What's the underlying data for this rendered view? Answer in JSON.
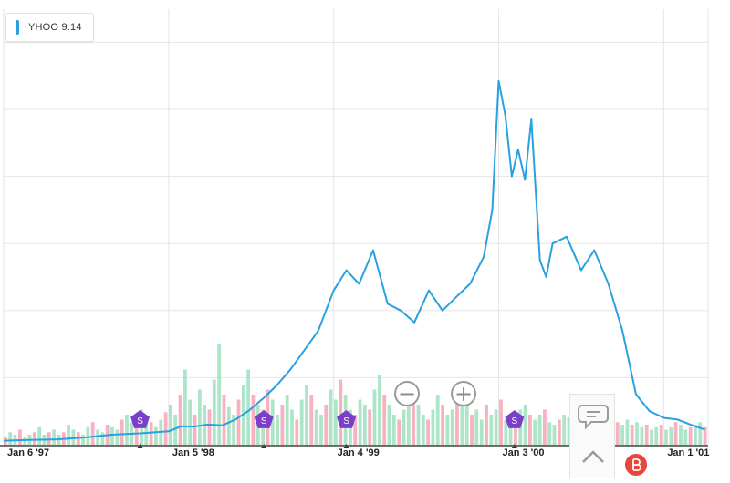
{
  "legend": {
    "label": "YHOO 9.14",
    "color": "#2aa0e0"
  },
  "colors": {
    "line": "#2aa0e0",
    "volume_up": "#9fe0bf",
    "volume_down": "#f5a5b5",
    "event_marker": "#7a3fc8",
    "grid": "#e6e6e6"
  },
  "controls": {
    "zoom_out": "−",
    "zoom_in": "+",
    "comment_icon": "comment-icon",
    "up_icon": "chevron-up-icon"
  },
  "chart_data": {
    "type": "line",
    "series": [
      {
        "name": "YHOO",
        "x": [
          "1997-01-06",
          "1997-03-03",
          "1997-05-05",
          "1997-07-07",
          "1997-09-01",
          "1997-11-03",
          "1998-01-05",
          "1998-02-02",
          "1998-03-02",
          "1998-04-01",
          "1998-05-04",
          "1998-06-01",
          "1998-07-01",
          "1998-08-03",
          "1998-09-01",
          "1998-10-01",
          "1998-11-02",
          "1998-12-01",
          "1999-01-04",
          "1999-02-01",
          "1999-03-01",
          "1999-04-01",
          "1999-05-03",
          "1999-06-01",
          "1999-07-01",
          "1999-08-02",
          "1999-09-01",
          "1999-10-01",
          "1999-11-01",
          "1999-12-01",
          "1999-12-20",
          "2000-01-03",
          "2000-01-18",
          "2000-02-01",
          "2000-02-15",
          "2000-03-01",
          "2000-03-15",
          "2000-04-03",
          "2000-04-17",
          "2000-05-01",
          "2000-06-01",
          "2000-07-03",
          "2000-08-01",
          "2000-09-01",
          "2000-10-02",
          "2000-11-01",
          "2000-12-01",
          "2001-01-02",
          "2001-02-01",
          "2001-03-01",
          "2001-04-02"
        ],
        "values": [
          1.2,
          1.4,
          1.6,
          2.2,
          3.0,
          3.4,
          4.0,
          5.5,
          5.4,
          6.0,
          5.8,
          7.5,
          10.2,
          14.0,
          17.8,
          22.5,
          28.5,
          34.0,
          46.0,
          52.0,
          48.0,
          58.0,
          42.0,
          40.0,
          36.5,
          46.0,
          40.0,
          44.0,
          48.0,
          56.0,
          70.0,
          108.5,
          98.0,
          80.0,
          88.0,
          79.0,
          97.0,
          55.0,
          50.0,
          60.0,
          62.0,
          52.0,
          58.0,
          48.0,
          34.0,
          15.0,
          10.0,
          8.0,
          7.5,
          6.0,
          4.5
        ]
      }
    ],
    "volume": [
      3,
      5,
      4,
      6,
      3,
      4,
      5,
      7,
      4,
      5,
      6,
      4,
      5,
      8,
      6,
      5,
      4,
      7,
      9,
      6,
      5,
      8,
      7,
      6,
      10,
      12,
      9,
      8,
      14,
      11,
      9,
      7,
      10,
      13,
      16,
      12,
      20,
      30,
      18,
      12,
      22,
      16,
      14,
      26,
      40,
      20,
      15,
      12,
      18,
      24,
      30,
      20,
      16,
      14,
      22,
      18,
      12,
      16,
      20,
      14,
      10,
      18,
      24,
      20,
      14,
      12,
      16,
      22,
      18,
      26,
      20,
      14,
      12,
      18,
      16,
      14,
      22,
      28,
      20,
      16,
      12,
      10,
      14,
      18,
      22,
      16,
      12,
      10,
      14,
      20,
      16,
      12,
      14,
      18,
      22,
      16,
      12,
      14,
      10,
      16,
      12,
      14,
      18,
      10,
      8,
      12,
      14,
      16,
      12,
      10,
      12,
      14,
      9,
      8,
      10,
      12,
      11,
      9,
      8,
      7,
      9,
      8,
      10,
      9,
      8,
      7,
      9,
      8,
      10,
      8,
      9,
      7,
      8,
      6,
      7,
      8,
      6,
      7,
      9,
      8,
      6,
      7,
      8,
      9,
      7
    ],
    "x_tick_labels": [
      "Jan 6 '97",
      "Jan 5 '98",
      "Jan 4 '99",
      "Jan 3 '00",
      "Jan 1 '01"
    ],
    "events": [
      {
        "label": "S",
        "date": "1997-11-03"
      },
      {
        "label": "S",
        "date": "1998-08-03"
      },
      {
        "label": "S",
        "date": "1999-02-01"
      },
      {
        "label": "S",
        "date": "2000-02-07"
      }
    ],
    "ylim": [
      0,
      125
    ],
    "grid": true,
    "legend_position": "top-left"
  }
}
